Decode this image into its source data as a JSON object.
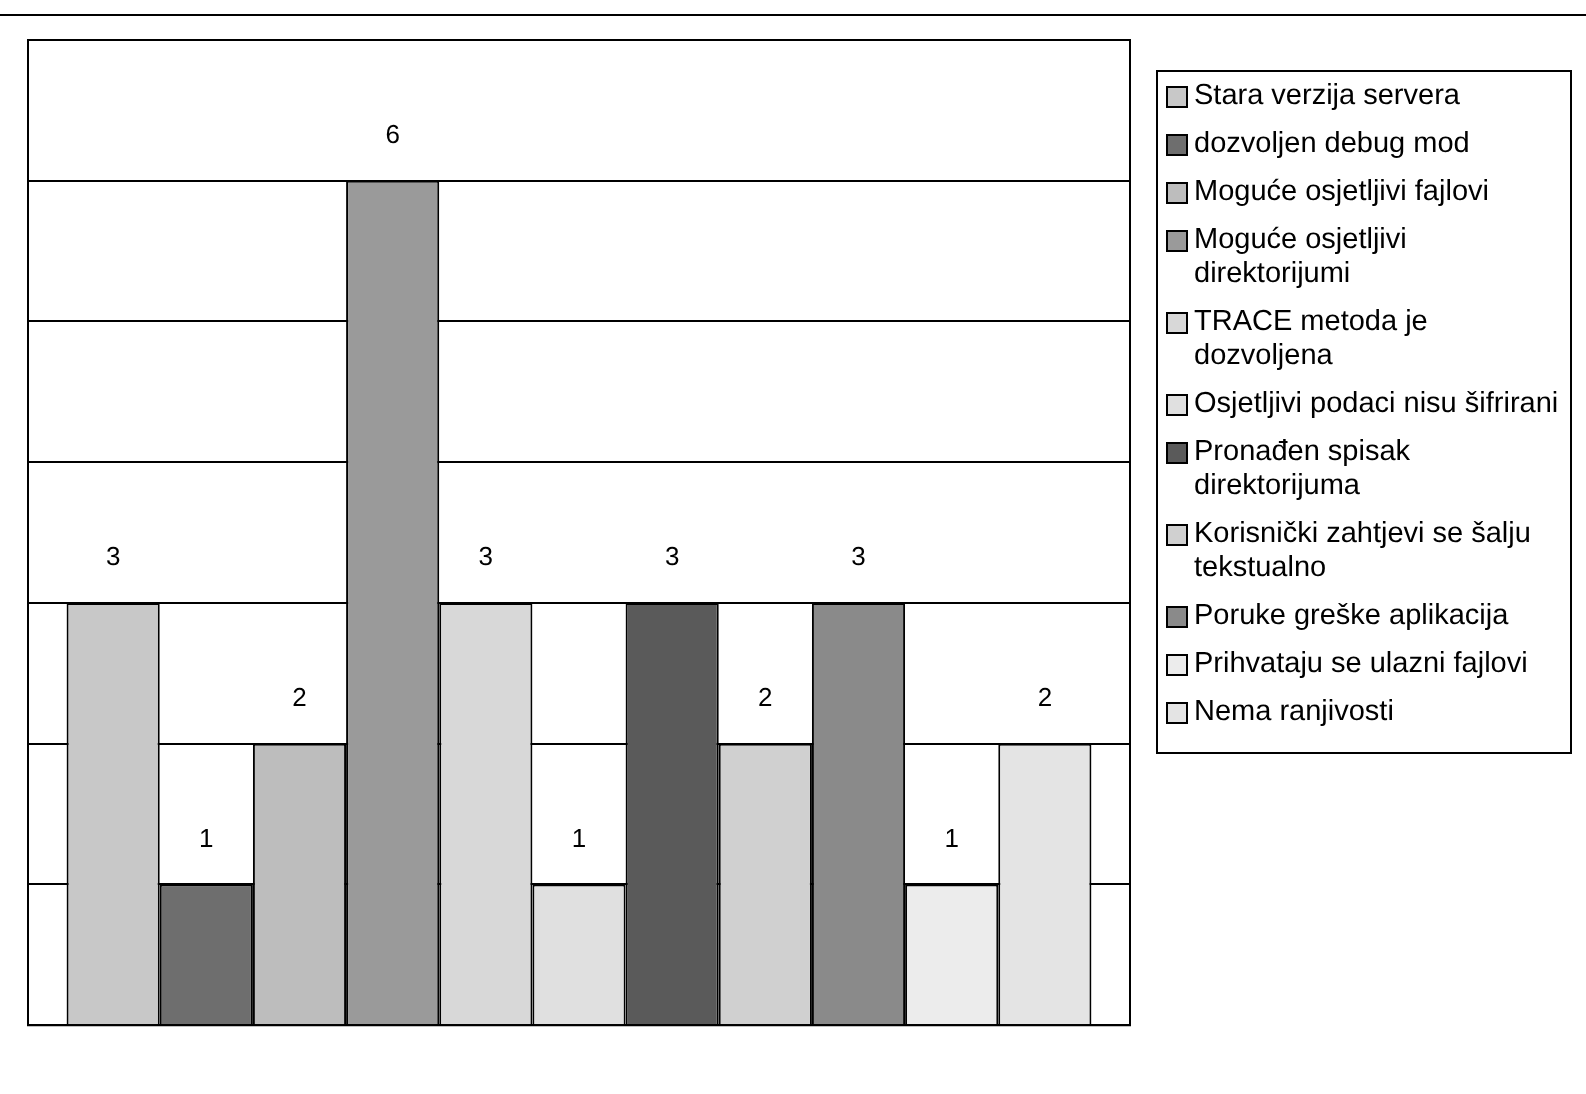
{
  "chart_data": {
    "type": "bar",
    "categories": [
      null
    ],
    "series": [
      {
        "name": "Stara verzija servera",
        "color": "#c8c8c8",
        "values": [
          3
        ]
      },
      {
        "name": "dozvoljen debug mod",
        "color": "#6e6e6e",
        "values": [
          1
        ]
      },
      {
        "name": "Moguće osjetljivi fajlovi",
        "color": "#bdbdbd",
        "values": [
          2
        ]
      },
      {
        "name": "Moguće osjetljivi direktorijumi",
        "color": "#9a9a9a",
        "values": [
          6
        ]
      },
      {
        "name": "TRACE metoda je dozvoljena",
        "color": "#d8d8d8",
        "values": [
          3
        ]
      },
      {
        "name": "Osjetljivi podaci nisu šifrirani",
        "color": "#e0e0e0",
        "values": [
          1
        ]
      },
      {
        "name": "Pronađen spisak direktorijuma",
        "color": "#5a5a5a",
        "values": [
          3
        ]
      },
      {
        "name": "Korisnički zahtjevi se šalju tekstualno",
        "color": "#d0d0d0",
        "values": [
          2
        ]
      },
      {
        "name": "Poruke greške aplikacija",
        "color": "#8a8a8a",
        "values": [
          3
        ]
      },
      {
        "name": "Prihvataju se ulazni fajlovi",
        "color": "#ececec",
        "values": [
          1
        ]
      },
      {
        "name": "Nema ranjivosti",
        "color": "#e4e4e4",
        "values": [
          2
        ]
      }
    ],
    "ylim": [
      0,
      7
    ],
    "yticks": [
      {
        "value": 0,
        "label": null
      },
      {
        "value": 1,
        "label": null
      },
      {
        "value": 2,
        "label": null
      },
      {
        "value": 3,
        "label": null
      },
      {
        "value": 4,
        "label": null
      },
      {
        "value": 5,
        "label": null
      },
      {
        "value": 6,
        "label": null
      },
      {
        "value": 7,
        "label": null
      }
    ],
    "grid": "y",
    "legend": "right",
    "data_labels": true
  }
}
